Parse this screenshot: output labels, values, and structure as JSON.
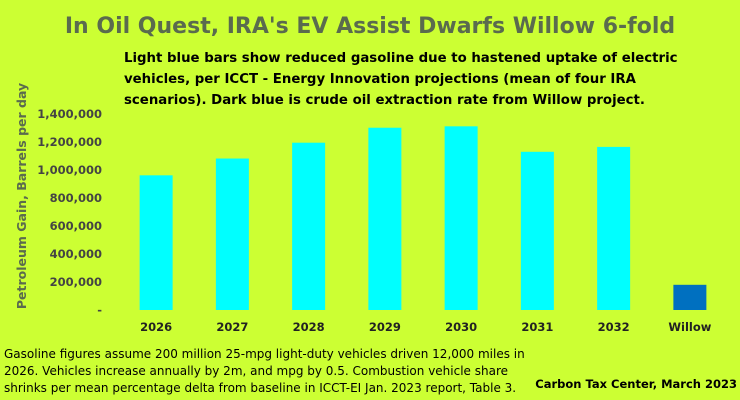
{
  "chart_data": {
    "type": "bar",
    "title": "In Oil Quest, IRA's EV Assist Dwarfs Willow 6-fold",
    "subtitle_lines": [
      "Light blue bars show reduced gasoline due to hastened uptake of electric",
      "vehicles, per ICCT - Energy Innovation projections (mean of four IRA",
      "scenarios). Dark blue is crude oil extraction rate from Willow project."
    ],
    "ylabel": "Petroleum Gain, Barrels per day",
    "xlabel": "",
    "ylim": [
      0,
      1400000
    ],
    "yticks": [
      0,
      200000,
      400000,
      600000,
      800000,
      1000000,
      1200000,
      1400000
    ],
    "ytick_labels": [
      "-",
      "200,000",
      "400,000",
      "600,000",
      "800,000",
      "1,000,000",
      "1,200,000",
      "1,400,000"
    ],
    "grid": false,
    "categories": [
      "2026",
      "2027",
      "2028",
      "2029",
      "2030",
      "2031",
      "2032",
      "Willow"
    ],
    "values": [
      962000,
      1082000,
      1195000,
      1302000,
      1312000,
      1130000,
      1165000,
      180000
    ],
    "bar_colors": [
      "#00ffff",
      "#00ffff",
      "#00ffff",
      "#00ffff",
      "#00ffff",
      "#00ffff",
      "#00ffff",
      "#0070c0"
    ]
  },
  "colors": {
    "background": "#ccff33",
    "ev_bars": "#00ffff",
    "willow_bar": "#0070c0",
    "title": "#5a6b4e"
  },
  "footnote_lines": [
    "Gasoline figures assume 200 million 25-mpg light-duty vehicles driven 12,000 miles in",
    "2026. Vehicles increase annually by 2m, and mpg by 0.5. Combustion vehicle share",
    "shrinks per mean percentage delta from baseline in ICCT-EI Jan. 2023 report, Table 3."
  ],
  "credit": "Carbon Tax Center, March 2023"
}
